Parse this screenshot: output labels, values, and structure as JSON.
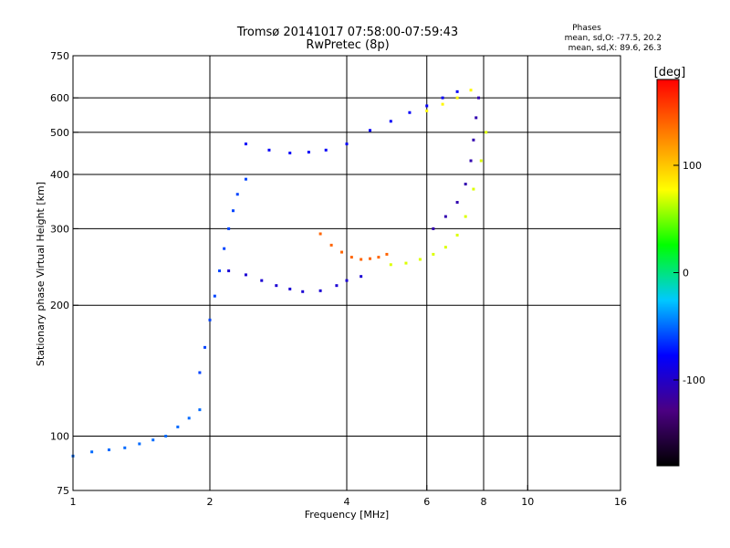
{
  "chart_data": {
    "type": "scatter",
    "title": "Tromsø 20141017 07:58:00-07:59:43",
    "subtitle": "RwPretec (8p)",
    "xlabel": "Frequency [MHz]",
    "ylabel": "Stationary phase Virtual Height [km]",
    "xscale": "log",
    "yscale": "log",
    "xlim": [
      1,
      16
    ],
    "ylim": [
      75,
      750
    ],
    "x_ticks": [
      1,
      2,
      4,
      6,
      8,
      10,
      16
    ],
    "y_ticks": [
      75,
      100,
      200,
      300,
      400,
      500,
      600,
      750
    ],
    "x_gridlines": [
      2,
      4,
      6,
      8,
      10
    ],
    "y_gridlines": [
      100,
      200,
      300,
      400,
      500,
      600
    ],
    "grid": true,
    "legend": {
      "title": "Phases",
      "lines": [
        "mean, sd,O: -77.5, 20.2",
        "mean, sd,X:  89.6, 26.3"
      ]
    },
    "colorbar": {
      "label": "[deg]",
      "min": -180,
      "max": 180,
      "ticks": [
        100,
        0,
        -100
      ],
      "colors": [
        "#000000",
        "#4b0082",
        "#0000ff",
        "#00c8ff",
        "#00ff00",
        "#ffff00",
        "#ff8000",
        "#ff0000"
      ]
    },
    "series": [
      {
        "x": [
          1.0,
          1.1,
          1.2,
          1.3,
          1.4,
          1.5,
          1.6,
          1.7,
          1.8,
          1.9
        ],
        "y": [
          90,
          92,
          93,
          94,
          96,
          98,
          100,
          105,
          110,
          115
        ],
        "phase": -50
      },
      {
        "x": [
          1.9,
          1.95,
          2.0,
          2.05,
          2.1,
          2.15,
          2.2,
          2.25,
          2.3,
          2.4
        ],
        "y": [
          140,
          160,
          185,
          210,
          240,
          270,
          300,
          330,
          360,
          390
        ],
        "phase": -60
      },
      {
        "x": [
          2.2,
          2.4,
          2.6,
          2.8,
          3.0,
          3.2,
          3.5,
          3.8,
          4.0,
          4.3
        ],
        "y": [
          240,
          235,
          228,
          222,
          218,
          215,
          216,
          222,
          228,
          233
        ],
        "phase": -95
      },
      {
        "x": [
          3.5,
          3.7,
          3.9,
          4.1,
          4.3,
          4.5,
          4.7,
          4.9
        ],
        "y": [
          292,
          275,
          265,
          258,
          255,
          256,
          258,
          262
        ],
        "phase": 140
      },
      {
        "x": [
          5.0,
          5.4,
          5.8,
          6.2,
          6.6,
          7.0,
          7.3,
          7.6,
          7.9,
          8.1
        ],
        "y": [
          248,
          250,
          255,
          262,
          272,
          290,
          320,
          370,
          430,
          500
        ],
        "phase": 70
      },
      {
        "x": [
          6.2,
          6.6,
          7.0,
          7.3,
          7.5,
          7.6,
          7.7,
          7.8
        ],
        "y": [
          300,
          320,
          345,
          380,
          430,
          480,
          540,
          600
        ],
        "phase": -110
      },
      {
        "x": [
          2.4,
          2.7,
          3.0,
          3.3,
          3.6,
          4.0,
          4.5,
          5.0,
          5.5,
          6.0,
          6.5,
          7.0
        ],
        "y": [
          470,
          455,
          448,
          450,
          455,
          470,
          505,
          530,
          555,
          575,
          600,
          620
        ],
        "phase": -80
      },
      {
        "x": [
          6.0,
          6.5,
          7.0,
          7.5
        ],
        "y": [
          560,
          580,
          600,
          625
        ],
        "phase": 80
      }
    ]
  }
}
